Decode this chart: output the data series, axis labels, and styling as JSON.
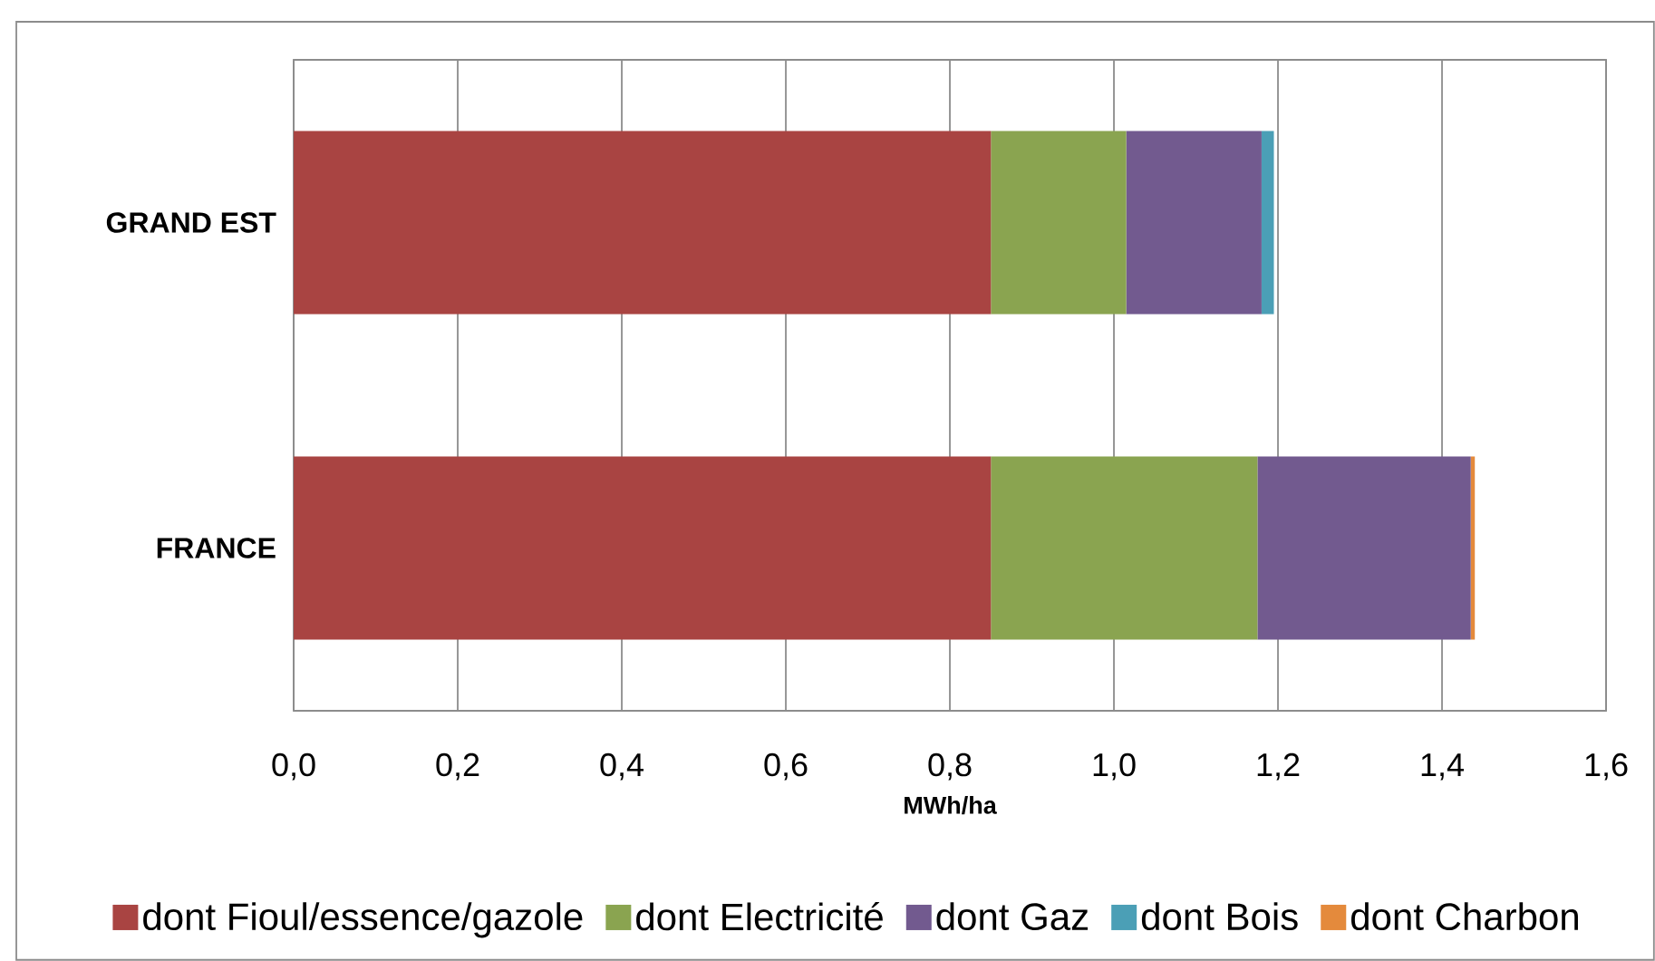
{
  "chart_data": {
    "type": "bar",
    "orientation": "horizontal",
    "stacked": true,
    "categories": [
      "GRAND EST",
      "FRANCE"
    ],
    "xlabel": "MWh/ha",
    "xlim": [
      0,
      1.6
    ],
    "xticks": [
      {
        "value": 0,
        "label": "0,0"
      },
      {
        "value": 0.2,
        "label": "0,2"
      },
      {
        "value": 0.4,
        "label": "0,4"
      },
      {
        "value": 0.6,
        "label": "0,6"
      },
      {
        "value": 0.8,
        "label": "0,8"
      },
      {
        "value": 1.0,
        "label": "1,0"
      },
      {
        "value": 1.2,
        "label": "1,2"
      },
      {
        "value": 1.4,
        "label": "1,4"
      },
      {
        "value": 1.6,
        "label": "1,6"
      }
    ],
    "grid": "x",
    "legend": "bottom",
    "series": [
      {
        "name": "dont Fioul/essence/gazole",
        "color": "#a94442",
        "values": [
          0.85,
          0.85
        ]
      },
      {
        "name": "dont Electricité",
        "color": "#8aa450",
        "values": [
          0.165,
          0.325
        ]
      },
      {
        "name": "dont Gaz",
        "color": "#725a8f",
        "values": [
          0.165,
          0.26
        ]
      },
      {
        "name": "dont Bois",
        "color": "#4b9fb6",
        "values": [
          0.015,
          null
        ]
      },
      {
        "name": "dont Charbon",
        "color": "#e48a3c",
        "values": [
          null,
          0.005
        ]
      }
    ]
  }
}
